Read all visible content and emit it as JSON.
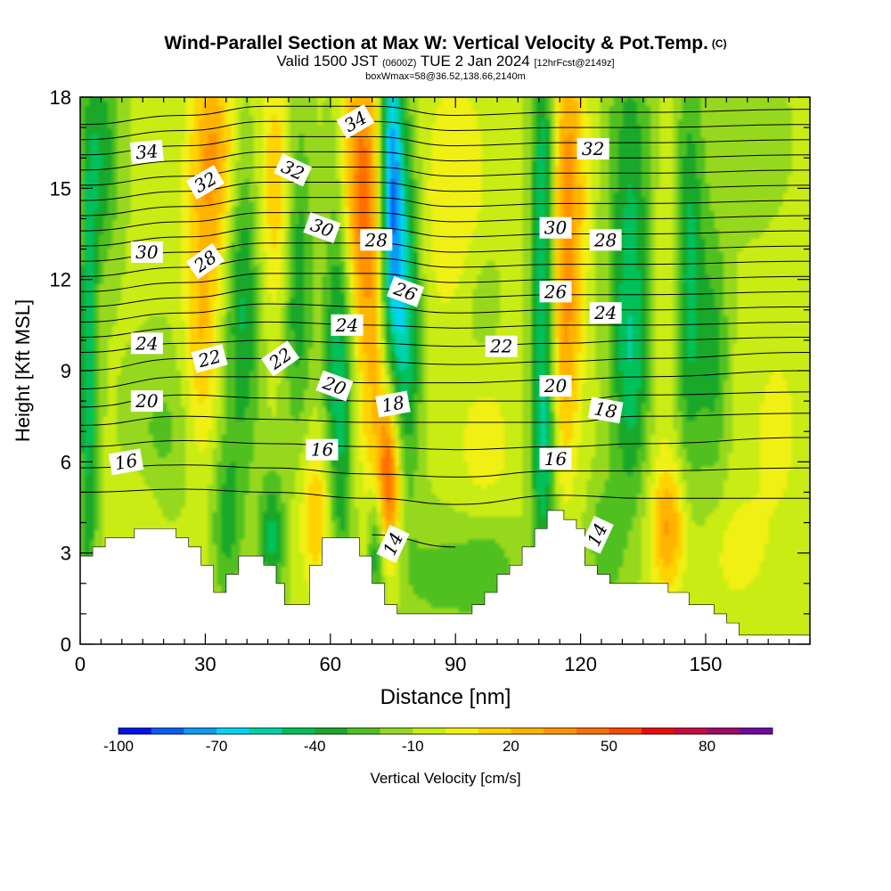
{
  "header": {
    "title": "Wind-Parallel Section at Max W: Vertical Velocity & Pot.Temp.",
    "copyright": "(C)",
    "valid_prefix": "Valid 1500 JST",
    "valid_utc": "(0600Z)",
    "valid_date": "TUE 2 Jan 2024",
    "forecast": "[12hrFcst@2149z]",
    "box_info": "boxWmax=58@36.52,138.66,2140m"
  },
  "colors": {
    "terrain": "#ffffff",
    "axis": "#000000",
    "contour": "#000000",
    "scale": [
      "#0010f0",
      "#0a5cf5",
      "#0a9bf5",
      "#00d4f5",
      "#00d2a8",
      "#00c05a",
      "#19a82a",
      "#50c020",
      "#96d81e",
      "#c8ec14",
      "#f0f014",
      "#ffd200",
      "#ffb400",
      "#ff9400",
      "#ff6e00",
      "#ff4600",
      "#ec0a0a",
      "#c80a3c",
      "#a00a64",
      "#6e0aa0"
    ]
  },
  "chart_data": {
    "type": "heatmap",
    "xlabel": "Distance [nm]",
    "ylabel": "Height [Kft MSL]",
    "xlim": [
      0,
      175
    ],
    "ylim": [
      0,
      18
    ],
    "x_ticks": [
      0,
      30,
      60,
      90,
      120,
      150
    ],
    "y_ticks": [
      0,
      3,
      6,
      9,
      12,
      15,
      18
    ],
    "colorbar": {
      "label": "Vertical Velocity [cm/s]",
      "range": [
        -100,
        100
      ],
      "step": 10,
      "tick_values": [
        -100,
        -70,
        -40,
        -10,
        20,
        50,
        80
      ]
    },
    "terrain_profile": [
      [
        0,
        2.9
      ],
      [
        3,
        2.9
      ],
      [
        3,
        3.2
      ],
      [
        6,
        3.2
      ],
      [
        6,
        3.5
      ],
      [
        13,
        3.5
      ],
      [
        13,
        3.8
      ],
      [
        23,
        3.8
      ],
      [
        23,
        3.5
      ],
      [
        26,
        3.5
      ],
      [
        26,
        3.2
      ],
      [
        29,
        3.2
      ],
      [
        29,
        2.6
      ],
      [
        32,
        2.6
      ],
      [
        32,
        1.7
      ],
      [
        35,
        1.7
      ],
      [
        35,
        2.3
      ],
      [
        38,
        2.3
      ],
      [
        38,
        2.9
      ],
      [
        44,
        2.9
      ],
      [
        44,
        2.6
      ],
      [
        47,
        2.6
      ],
      [
        47,
        2.0
      ],
      [
        49,
        2.0
      ],
      [
        49,
        1.3
      ],
      [
        55,
        1.3
      ],
      [
        55,
        2.6
      ],
      [
        58,
        2.6
      ],
      [
        58,
        3.5
      ],
      [
        67,
        3.5
      ],
      [
        67,
        2.9
      ],
      [
        70,
        2.9
      ],
      [
        70,
        2.0
      ],
      [
        73,
        2.0
      ],
      [
        73,
        1.3
      ],
      [
        76,
        1.3
      ],
      [
        76,
        1.0
      ],
      [
        94,
        1.0
      ],
      [
        94,
        1.3
      ],
      [
        97,
        1.3
      ],
      [
        97,
        1.7
      ],
      [
        100,
        1.7
      ],
      [
        100,
        2.3
      ],
      [
        103,
        2.3
      ],
      [
        103,
        2.6
      ],
      [
        106,
        2.6
      ],
      [
        106,
        3.2
      ],
      [
        109,
        3.2
      ],
      [
        109,
        3.8
      ],
      [
        112,
        3.8
      ],
      [
        112,
        4.4
      ],
      [
        116,
        4.4
      ],
      [
        116,
        4.1
      ],
      [
        119,
        4.1
      ],
      [
        119,
        3.8
      ],
      [
        121,
        3.8
      ],
      [
        121,
        2.6
      ],
      [
        124,
        2.6
      ],
      [
        124,
        2.3
      ],
      [
        127,
        2.3
      ],
      [
        127,
        2.0
      ],
      [
        141,
        2.0
      ],
      [
        141,
        1.7
      ],
      [
        146,
        1.7
      ],
      [
        146,
        1.3
      ],
      [
        152,
        1.3
      ],
      [
        152,
        1.0
      ],
      [
        155,
        1.0
      ],
      [
        155,
        0.7
      ],
      [
        158,
        0.7
      ],
      [
        158,
        0.3
      ],
      [
        175,
        0.3
      ]
    ],
    "theta_contour_heights": {
      "x": [
        0,
        25,
        45,
        70,
        90,
        115,
        135,
        175
      ],
      "levels": [
        {
          "theta": 14,
          "heights": [
            null,
            null,
            null,
            3.6,
            3.2,
            null,
            3.6,
            null
          ]
        },
        {
          "theta": 15,
          "heights": [
            5.0,
            5.1,
            5.0,
            4.8,
            4.6,
            4.9,
            4.8,
            4.8
          ]
        },
        {
          "theta": 16,
          "heights": [
            5.8,
            5.9,
            5.8,
            5.6,
            5.5,
            5.7,
            5.7,
            5.8
          ]
        },
        {
          "theta": 17,
          "heights": [
            6.5,
            6.7,
            6.6,
            6.5,
            6.4,
            6.5,
            6.6,
            6.8
          ]
        },
        {
          "theta": 18,
          "heights": [
            7.2,
            7.5,
            7.4,
            7.3,
            7.3,
            7.3,
            7.5,
            7.6
          ]
        },
        {
          "theta": 19,
          "heights": [
            7.8,
            8.2,
            8.1,
            8.0,
            8.0,
            8.0,
            8.2,
            8.3
          ]
        },
        {
          "theta": 20,
          "heights": [
            8.4,
            8.8,
            8.8,
            8.6,
            8.6,
            8.7,
            8.8,
            9.0
          ]
        },
        {
          "theta": 21,
          "heights": [
            9.0,
            9.4,
            9.4,
            9.3,
            9.2,
            9.3,
            9.4,
            9.6
          ]
        },
        {
          "theta": 22,
          "heights": [
            9.6,
            9.9,
            10.0,
            9.9,
            9.8,
            9.9,
            10.0,
            10.1
          ]
        },
        {
          "theta": 23,
          "heights": [
            10.1,
            10.4,
            10.6,
            10.5,
            10.4,
            10.5,
            10.5,
            10.6
          ]
        },
        {
          "theta": 24,
          "heights": [
            10.6,
            10.9,
            11.2,
            11.1,
            10.9,
            11.0,
            11.0,
            11.1
          ]
        },
        {
          "theta": 25,
          "heights": [
            11.1,
            11.4,
            11.7,
            11.7,
            11.4,
            11.5,
            11.5,
            11.6
          ]
        },
        {
          "theta": 26,
          "heights": [
            11.6,
            11.9,
            12.2,
            12.2,
            11.9,
            12.0,
            12.0,
            12.1
          ]
        },
        {
          "theta": 27,
          "heights": [
            12.1,
            12.4,
            12.7,
            12.7,
            12.4,
            12.5,
            12.5,
            12.6
          ]
        },
        {
          "theta": 28,
          "heights": [
            12.6,
            12.9,
            13.2,
            13.2,
            12.9,
            13.0,
            13.0,
            13.1
          ]
        },
        {
          "theta": 29,
          "heights": [
            13.1,
            13.4,
            13.7,
            13.7,
            13.4,
            13.5,
            13.5,
            13.6
          ]
        },
        {
          "theta": 30,
          "heights": [
            13.6,
            13.9,
            14.2,
            14.2,
            13.9,
            14.0,
            14.0,
            14.1
          ]
        },
        {
          "theta": 31,
          "heights": [
            14.1,
            14.4,
            14.7,
            14.7,
            14.4,
            14.5,
            14.5,
            14.6
          ]
        },
        {
          "theta": 32,
          "heights": [
            14.6,
            14.9,
            15.2,
            15.2,
            14.9,
            15.0,
            15.0,
            15.1
          ]
        },
        {
          "theta": 33,
          "heights": [
            15.1,
            15.4,
            15.7,
            15.7,
            15.4,
            15.5,
            15.5,
            15.6
          ]
        },
        {
          "theta": 34,
          "heights": [
            15.6,
            15.9,
            16.2,
            16.2,
            15.9,
            16.0,
            16.0,
            16.1
          ]
        },
        {
          "theta": 35,
          "heights": [
            16.1,
            16.4,
            16.7,
            16.7,
            16.4,
            16.5,
            16.5,
            16.6
          ]
        },
        {
          "theta": 36,
          "heights": [
            16.6,
            16.9,
            17.2,
            17.2,
            16.9,
            17.0,
            17.0,
            17.1
          ]
        },
        {
          "theta": 37,
          "heights": [
            17.1,
            17.4,
            17.7,
            17.7,
            17.4,
            17.5,
            17.5,
            17.6
          ]
        }
      ]
    },
    "contour_labels": [
      {
        "text": "34",
        "x": 16,
        "y": 16.2,
        "angle": -5
      },
      {
        "text": "32",
        "x": 30,
        "y": 15.2,
        "angle": -30
      },
      {
        "text": "32",
        "x": 51,
        "y": 15.6,
        "angle": 25
      },
      {
        "text": "34",
        "x": 66,
        "y": 17.2,
        "angle": -30
      },
      {
        "text": "32",
        "x": 123,
        "y": 16.3,
        "angle": 0
      },
      {
        "text": "30",
        "x": 16,
        "y": 12.9,
        "angle": 0
      },
      {
        "text": "28",
        "x": 30,
        "y": 12.6,
        "angle": -35
      },
      {
        "text": "30",
        "x": 58,
        "y": 13.7,
        "angle": 20
      },
      {
        "text": "28",
        "x": 71,
        "y": 13.3,
        "angle": 0
      },
      {
        "text": "30",
        "x": 114,
        "y": 13.7,
        "angle": 0
      },
      {
        "text": "28",
        "x": 126,
        "y": 13.3,
        "angle": 0
      },
      {
        "text": "26",
        "x": 78,
        "y": 11.6,
        "angle": 20
      },
      {
        "text": "26",
        "x": 114,
        "y": 11.6,
        "angle": 0
      },
      {
        "text": "24",
        "x": 16,
        "y": 9.9,
        "angle": 0
      },
      {
        "text": "24",
        "x": 64,
        "y": 10.5,
        "angle": 0
      },
      {
        "text": "24",
        "x": 126,
        "y": 10.9,
        "angle": 0
      },
      {
        "text": "22",
        "x": 31,
        "y": 9.4,
        "angle": -15
      },
      {
        "text": "22",
        "x": 48,
        "y": 9.4,
        "angle": -35
      },
      {
        "text": "22",
        "x": 101,
        "y": 9.8,
        "angle": 0
      },
      {
        "text": "20",
        "x": 16,
        "y": 8.0,
        "angle": 0
      },
      {
        "text": "20",
        "x": 61,
        "y": 8.5,
        "angle": 20
      },
      {
        "text": "20",
        "x": 114,
        "y": 8.5,
        "angle": 0
      },
      {
        "text": "18",
        "x": 75,
        "y": 7.9,
        "angle": -10
      },
      {
        "text": "18",
        "x": 126,
        "y": 7.7,
        "angle": 10
      },
      {
        "text": "16",
        "x": 11,
        "y": 6.0,
        "angle": -10
      },
      {
        "text": "16",
        "x": 58,
        "y": 6.4,
        "angle": 0
      },
      {
        "text": "16",
        "x": 114,
        "y": 6.1,
        "angle": 0
      },
      {
        "text": "14",
        "x": 75,
        "y": 3.3,
        "angle": -65
      },
      {
        "text": "14",
        "x": 124,
        "y": 3.6,
        "angle": -65
      }
    ],
    "velocity_columns": [
      {
        "x": 2,
        "y": 8.5,
        "sx": 1.5,
        "sy": 5.5,
        "w": -38
      },
      {
        "x": 5,
        "y": 16.0,
        "sx": 3,
        "sy": 2.5,
        "w": -30
      },
      {
        "x": 32,
        "y": 16.0,
        "sx": 4,
        "sy": 2.5,
        "w": 40
      },
      {
        "x": 29,
        "y": 10.0,
        "sx": 3,
        "sy": 3,
        "w": 28
      },
      {
        "x": 39,
        "y": 11.5,
        "sx": 3,
        "sy": 4,
        "w": -35
      },
      {
        "x": 35,
        "y": 4.0,
        "sx": 2.5,
        "sy": 2,
        "w": -25
      },
      {
        "x": 48,
        "y": 15.0,
        "sx": 4,
        "sy": 3,
        "w": 30
      },
      {
        "x": 52,
        "y": 13.0,
        "sx": 2.5,
        "sy": 4,
        "w": -40
      },
      {
        "x": 46,
        "y": 3.5,
        "sx": 2,
        "sy": 1.5,
        "w": -35
      },
      {
        "x": 57,
        "y": 4.3,
        "sx": 3,
        "sy": 1.8,
        "w": 30
      },
      {
        "x": 62,
        "y": 9.0,
        "sx": 2.5,
        "sy": 6,
        "w": -42
      },
      {
        "x": 66,
        "y": 15.5,
        "sx": 3.5,
        "sy": 3,
        "w": 45
      },
      {
        "x": 70,
        "y": 11.0,
        "sx": 3,
        "sy": 5,
        "w": 30
      },
      {
        "x": 74,
        "y": 5.5,
        "sx": 2,
        "sy": 2,
        "w": 58
      },
      {
        "x": 71,
        "y": 3.2,
        "sx": 1.5,
        "sy": 1.5,
        "w": -38
      },
      {
        "x": 74.5,
        "y": 15.0,
        "sx": 2,
        "sy": 4,
        "w": -70
      },
      {
        "x": 78,
        "y": 11.0,
        "sx": 2.5,
        "sy": 4,
        "w": -45
      },
      {
        "x": 86,
        "y": 2.2,
        "sx": 7,
        "sy": 1.4,
        "w": -15
      },
      {
        "x": 98,
        "y": 2.6,
        "sx": 5,
        "sy": 1.4,
        "w": -22
      },
      {
        "x": 97,
        "y": 6.5,
        "sx": 5,
        "sy": 3,
        "w": 14
      },
      {
        "x": 111,
        "y": 13.5,
        "sx": 2,
        "sy": 6,
        "w": -45
      },
      {
        "x": 111,
        "y": 6.0,
        "sx": 2,
        "sy": 2.5,
        "w": -25
      },
      {
        "x": 117,
        "y": 15.0,
        "sx": 3,
        "sy": 4,
        "w": 42
      },
      {
        "x": 116,
        "y": 9.0,
        "sx": 2.5,
        "sy": 3,
        "w": 22
      },
      {
        "x": 126,
        "y": 3.3,
        "sx": 3,
        "sy": 1.5,
        "w": -20
      },
      {
        "x": 132,
        "y": 14.5,
        "sx": 4,
        "sy": 4.5,
        "w": -30
      },
      {
        "x": 132,
        "y": 8.5,
        "sx": 3,
        "sy": 3,
        "w": -28
      },
      {
        "x": 140,
        "y": 11.5,
        "sx": 3,
        "sy": 4,
        "w": 12
      },
      {
        "x": 141,
        "y": 3.8,
        "sx": 3,
        "sy": 1.5,
        "w": 38
      },
      {
        "x": 146,
        "y": 12.0,
        "sx": 2.5,
        "sy": 4.5,
        "w": -38
      },
      {
        "x": 152,
        "y": 9.5,
        "sx": 2.5,
        "sy": 3,
        "w": -25
      },
      {
        "x": 157,
        "y": 3.0,
        "sx": 5,
        "sy": 1.3,
        "w": 12
      },
      {
        "x": 160,
        "y": 16.5,
        "sx": 6,
        "sy": 2,
        "w": -10
      },
      {
        "x": 20,
        "y": 1.8,
        "sx": 6,
        "sy": 1.5,
        "w": 5
      },
      {
        "x": 13,
        "y": 4.5,
        "sx": 4,
        "sy": 1,
        "w": 10
      },
      {
        "x": 90,
        "y": 14.5,
        "sx": 6,
        "sy": 3,
        "w": 18
      },
      {
        "x": 96,
        "y": 11.0,
        "sx": 4,
        "sy": 2,
        "w": -15
      },
      {
        "x": 20,
        "y": 7.0,
        "sx": 6,
        "sy": 2,
        "w": -14
      },
      {
        "x": 167,
        "y": 7.0,
        "sx": 6,
        "sy": 3,
        "w": 10
      }
    ],
    "velocity_background": -8
  }
}
